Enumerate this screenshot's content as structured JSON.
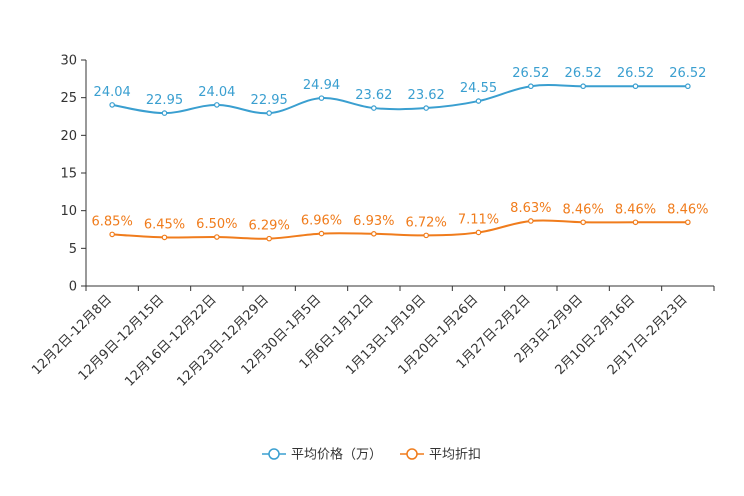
{
  "chart_data": {
    "type": "line",
    "categories": [
      "12月2日-12月8日",
      "12月9日-12月15日",
      "12月16日-12月22日",
      "12月23日-12月29日",
      "12月30日-1月5日",
      "1月6日-1月12日",
      "1月13日-1月19日",
      "1月20日-1月26日",
      "1月27日-2月2日",
      "2月3日-2月9日",
      "2月10日-2月16日",
      "2月17日-2月23日"
    ],
    "series": [
      {
        "name": "平均价格（万）",
        "color": "#3a9fd0",
        "values": [
          24.04,
          22.95,
          24.04,
          22.95,
          24.94,
          23.62,
          23.62,
          24.55,
          26.52,
          26.52,
          26.52,
          26.52
        ],
        "labels": [
          "24.04",
          "22.95",
          "24.04",
          "22.95",
          "24.94",
          "23.62",
          "23.62",
          "24.55",
          "26.52",
          "26.52",
          "26.52",
          "26.52"
        ]
      },
      {
        "name": "平均折扣",
        "color": "#f07c1c",
        "values": [
          6.85,
          6.45,
          6.5,
          6.29,
          6.96,
          6.93,
          6.72,
          7.11,
          8.63,
          8.46,
          8.46,
          8.46
        ],
        "labels": [
          "6.85%",
          "6.45%",
          "6.50%",
          "6.29%",
          "6.96%",
          "6.93%",
          "6.72%",
          "7.11%",
          "8.63%",
          "8.46%",
          "8.46%",
          "8.46%"
        ]
      }
    ],
    "yticks": [
      "0",
      "5",
      "10",
      "15",
      "20",
      "25",
      "30"
    ],
    "ylim": [
      0,
      30
    ],
    "title": "",
    "xlabel": "",
    "ylabel": "",
    "legend": "bottom-center"
  }
}
